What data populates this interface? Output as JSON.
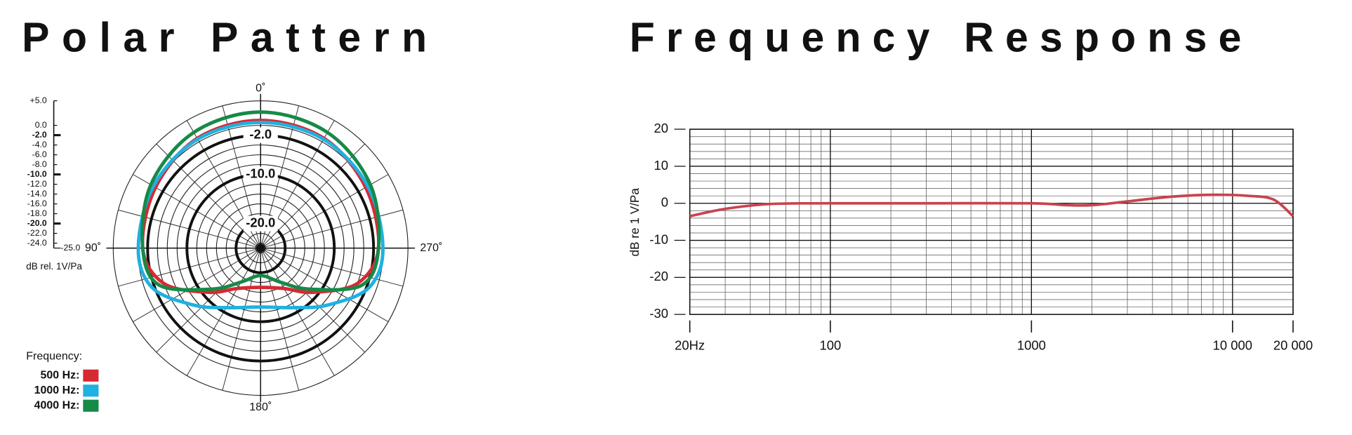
{
  "chart_data": [
    {
      "type": "polar",
      "title": "Polar Pattern",
      "rlim": [
        -25,
        5
      ],
      "rticks": [
        5,
        0,
        -2,
        -4,
        -6,
        -8,
        -10,
        -12,
        -14,
        -16,
        -18,
        -20,
        -22,
        -24
      ],
      "angle_grid": [
        0,
        15,
        30,
        45,
        60,
        75,
        90,
        105,
        120,
        135,
        150,
        165,
        180,
        195,
        210,
        225,
        240,
        255,
        270,
        285,
        300,
        315,
        330,
        345
      ],
      "angle_labels": [
        {
          "value": 0,
          "label": "0˚"
        },
        {
          "value": 90,
          "label": "90˚"
        },
        {
          "value": 180,
          "label": "180˚"
        },
        {
          "value": 270,
          "label": "270˚"
        }
      ],
      "ring_labels": [
        {
          "value": -2,
          "label": "-2.0"
        },
        {
          "value": -10,
          "label": "-10.0"
        },
        {
          "value": -20,
          "label": "-20.0"
        }
      ],
      "scale_ticks": [
        {
          "value": 5,
          "label": "+5.0"
        },
        {
          "value": 0,
          "label": "0.0"
        },
        {
          "value": -2,
          "label": "-2.0"
        },
        {
          "value": -4,
          "label": "-4.0"
        },
        {
          "value": -6,
          "label": "-6.0"
        },
        {
          "value": -8,
          "label": "-8.0"
        },
        {
          "value": -10,
          "label": "-10.0"
        },
        {
          "value": -12,
          "label": "-12.0"
        },
        {
          "value": -14,
          "label": "-14.0"
        },
        {
          "value": -16,
          "label": "-16.0"
        },
        {
          "value": -18,
          "label": "-18.0"
        },
        {
          "value": -20,
          "label": "-20.0"
        },
        {
          "value": -22,
          "label": "-22.0"
        },
        {
          "value": -24,
          "label": "-24.0"
        },
        {
          "value": -25,
          "label": "-25.0"
        }
      ],
      "scale_label": "dB rel. 1V/Pa",
      "legend_title": "Frequency:",
      "theta": [
        0,
        30,
        60,
        90,
        110,
        130,
        150,
        180,
        210,
        230,
        250,
        270,
        300,
        330
      ],
      "series": [
        {
          "name": "500 Hz:",
          "color": "#d62a33",
          "values": [
            1,
            0.8,
            -0.3,
            -1,
            -4,
            -11,
            -15.5,
            -17,
            -15.5,
            -11,
            -4,
            -1,
            -0.3,
            0.8
          ]
        },
        {
          "name": "1000 Hz:",
          "color": "#1fb1e0",
          "values": [
            0.6,
            0.6,
            0.2,
            -0.1,
            -1.5,
            -7,
            -11,
            -13,
            -11,
            -7,
            -1.5,
            -0.1,
            0.2,
            0.6
          ]
        },
        {
          "name": "4000 Hz:",
          "color": "#168a47",
          "values": [
            2.7,
            2.2,
            0.8,
            -1,
            -3,
            -12,
            -17,
            -19.4,
            -17,
            -12,
            -3,
            -1,
            0.8,
            2.2
          ]
        }
      ]
    },
    {
      "type": "line",
      "title": "Frequency Response",
      "ylabel": "dB re 1 V/Pa",
      "xscale": "log",
      "xlim": [
        20,
        20000
      ],
      "ylim": [
        -30,
        20
      ],
      "xticks": [
        {
          "value": 20,
          "label": "20Hz"
        },
        100,
        1000,
        {
          "value": 10000,
          "label": "10 000"
        },
        {
          "value": 20000,
          "label": "20 000"
        }
      ],
      "yticks": [
        -30,
        -20,
        -10,
        0,
        10,
        20
      ],
      "x_grid": [
        20,
        30,
        40,
        50,
        60,
        70,
        80,
        90,
        100,
        200,
        300,
        400,
        500,
        600,
        700,
        800,
        900,
        1000,
        2000,
        3000,
        4000,
        5000,
        6000,
        7000,
        8000,
        9000,
        10000,
        20000
      ],
      "y_grid": [
        -30,
        -28,
        -26,
        -24,
        -22,
        -20,
        -18,
        -16,
        -14,
        -12,
        -10,
        -8,
        -6,
        -4,
        -2,
        0,
        2,
        4,
        6,
        8,
        10,
        12,
        14,
        16,
        18,
        20
      ],
      "x": [
        20,
        30,
        50,
        100,
        300,
        1000,
        1500,
        2000,
        3000,
        5000,
        8000,
        12000,
        16000,
        20000
      ],
      "series": [
        {
          "color": "#c8434e",
          "values": [
            -3.5,
            -1.5,
            -0.2,
            0,
            0,
            0,
            -0.5,
            -0.5,
            0.5,
            1.8,
            2.3,
            2,
            1,
            -3.5
          ]
        }
      ]
    }
  ]
}
